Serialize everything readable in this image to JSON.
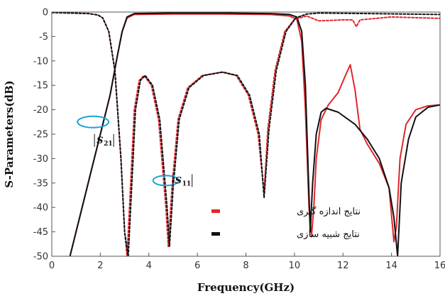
{
  "chart_data": {
    "type": "line",
    "xlabel": "Frequency(GHz)",
    "ylabel": "S-Parameters(dB)",
    "xlim": [
      0,
      16
    ],
    "ylim": [
      -50,
      0
    ],
    "xticks": [
      0,
      2,
      4,
      6,
      8,
      10,
      12,
      14,
      16
    ],
    "yticks": [
      0,
      -5,
      -10,
      -15,
      -20,
      -25,
      -30,
      -35,
      -40,
      -45,
      -50
    ],
    "grid": false,
    "legend_position": "bottom-center",
    "legend": [
      {
        "label": "نتایج اندازه گیری",
        "color": "#e0262b"
      },
      {
        "label": "نتایج شبیه سازی",
        "color": "#111111"
      }
    ],
    "annotations": [
      {
        "main": "S",
        "sub": "21",
        "x": 1.7,
        "y": -22.5
      },
      {
        "main": "S",
        "sub": "11",
        "x": 4.7,
        "y": -34.5
      }
    ],
    "series": [
      {
        "style": "solid",
        "color": "#e0262b",
        "points": [
          [
            0.75,
            -50
          ],
          [
            1.2,
            -41
          ],
          [
            1.6,
            -33
          ],
          [
            2.0,
            -25
          ],
          [
            2.4,
            -17
          ],
          [
            2.7,
            -9
          ],
          [
            2.9,
            -4
          ],
          [
            3.1,
            -1.2
          ],
          [
            3.4,
            -0.5
          ],
          [
            5,
            -0.4
          ],
          [
            7,
            -0.4
          ],
          [
            9,
            -0.5
          ],
          [
            9.8,
            -0.8
          ],
          [
            10.1,
            -1.5
          ],
          [
            10.3,
            -6
          ],
          [
            10.45,
            -20
          ],
          [
            10.6,
            -40
          ],
          [
            10.7,
            -46
          ],
          [
            10.8,
            -40
          ],
          [
            10.9,
            -30
          ],
          [
            11.1,
            -22
          ],
          [
            11.4,
            -19
          ],
          [
            11.8,
            -16.5
          ],
          [
            12.1,
            -13
          ],
          [
            12.3,
            -10.8
          ],
          [
            12.5,
            -16
          ],
          [
            12.7,
            -24
          ],
          [
            13.0,
            -27
          ],
          [
            13.5,
            -31
          ],
          [
            13.9,
            -36
          ],
          [
            14.1,
            -47
          ],
          [
            14.2,
            -44
          ],
          [
            14.35,
            -30
          ],
          [
            14.6,
            -23
          ],
          [
            15.0,
            -20
          ],
          [
            15.5,
            -19.2
          ],
          [
            16,
            -19
          ]
        ]
      },
      {
        "style": "solid",
        "color": "#111111",
        "points": [
          [
            0.75,
            -50
          ],
          [
            1.2,
            -41
          ],
          [
            1.6,
            -33
          ],
          [
            2.0,
            -25
          ],
          [
            2.4,
            -17
          ],
          [
            2.7,
            -9
          ],
          [
            2.9,
            -4
          ],
          [
            3.1,
            -1.0
          ],
          [
            3.4,
            -0.3
          ],
          [
            5,
            -0.2
          ],
          [
            7,
            -0.2
          ],
          [
            9,
            -0.3
          ],
          [
            9.8,
            -0.5
          ],
          [
            10.1,
            -1.0
          ],
          [
            10.3,
            -4
          ],
          [
            10.45,
            -15
          ],
          [
            10.55,
            -30
          ],
          [
            10.65,
            -45
          ],
          [
            10.75,
            -35
          ],
          [
            10.9,
            -25
          ],
          [
            11.1,
            -20.5
          ],
          [
            11.3,
            -19.7
          ],
          [
            11.8,
            -20.5
          ],
          [
            12.5,
            -23
          ],
          [
            13.0,
            -26
          ],
          [
            13.5,
            -30
          ],
          [
            13.9,
            -36
          ],
          [
            14.1,
            -42
          ],
          [
            14.25,
            -50
          ],
          [
            14.4,
            -35
          ],
          [
            14.7,
            -26
          ],
          [
            15.0,
            -21.5
          ],
          [
            15.5,
            -19.5
          ],
          [
            16,
            -19
          ]
        ]
      },
      {
        "style": "dashed",
        "color": "#e0262b",
        "points": [
          [
            0,
            -0.1
          ],
          [
            1.5,
            -0.3
          ],
          [
            1.9,
            -0.6
          ],
          [
            2.1,
            -1.2
          ],
          [
            2.35,
            -4
          ],
          [
            2.6,
            -12
          ],
          [
            2.85,
            -30
          ],
          [
            3.0,
            -45
          ],
          [
            3.1,
            -50
          ],
          [
            3.25,
            -35
          ],
          [
            3.4,
            -20
          ],
          [
            3.6,
            -14
          ],
          [
            3.8,
            -13
          ],
          [
            4.1,
            -15
          ],
          [
            4.4,
            -22
          ],
          [
            4.7,
            -40
          ],
          [
            4.8,
            -48
          ],
          [
            4.95,
            -36
          ],
          [
            5.2,
            -22
          ],
          [
            5.6,
            -15.5
          ],
          [
            6.2,
            -13
          ],
          [
            7.0,
            -12.3
          ],
          [
            7.6,
            -13
          ],
          [
            8.1,
            -17
          ],
          [
            8.5,
            -25
          ],
          [
            8.75,
            -37
          ],
          [
            8.9,
            -24
          ],
          [
            9.2,
            -12
          ],
          [
            9.6,
            -4
          ],
          [
            10.0,
            -1.5
          ],
          [
            10.5,
            -0.8
          ],
          [
            11,
            -1.8
          ],
          [
            12,
            -1.6
          ],
          [
            12.4,
            -1.6
          ],
          [
            12.55,
            -3
          ],
          [
            12.7,
            -1.6
          ],
          [
            14,
            -1.0
          ],
          [
            16,
            -1.3
          ]
        ]
      },
      {
        "style": "dashed",
        "color": "#111111",
        "points": [
          [
            0,
            -0.1
          ],
          [
            1.5,
            -0.3
          ],
          [
            1.9,
            -0.6
          ],
          [
            2.1,
            -1.2
          ],
          [
            2.35,
            -4
          ],
          [
            2.6,
            -12
          ],
          [
            2.85,
            -30
          ],
          [
            3.0,
            -45
          ],
          [
            3.15,
            -50
          ],
          [
            3.3,
            -35
          ],
          [
            3.45,
            -20
          ],
          [
            3.65,
            -14
          ],
          [
            3.85,
            -13
          ],
          [
            4.15,
            -15
          ],
          [
            4.45,
            -22
          ],
          [
            4.75,
            -40
          ],
          [
            4.85,
            -48
          ],
          [
            5.0,
            -36
          ],
          [
            5.25,
            -22
          ],
          [
            5.65,
            -15.5
          ],
          [
            6.25,
            -13
          ],
          [
            7.05,
            -12.3
          ],
          [
            7.65,
            -13
          ],
          [
            8.15,
            -17
          ],
          [
            8.55,
            -25
          ],
          [
            8.75,
            -38
          ],
          [
            8.95,
            -24
          ],
          [
            9.25,
            -12
          ],
          [
            9.65,
            -4
          ],
          [
            10.05,
            -1.2
          ],
          [
            10.5,
            -0.4
          ],
          [
            11,
            -0.2
          ],
          [
            13,
            -0.3
          ],
          [
            16,
            -0.5
          ]
        ]
      }
    ]
  }
}
